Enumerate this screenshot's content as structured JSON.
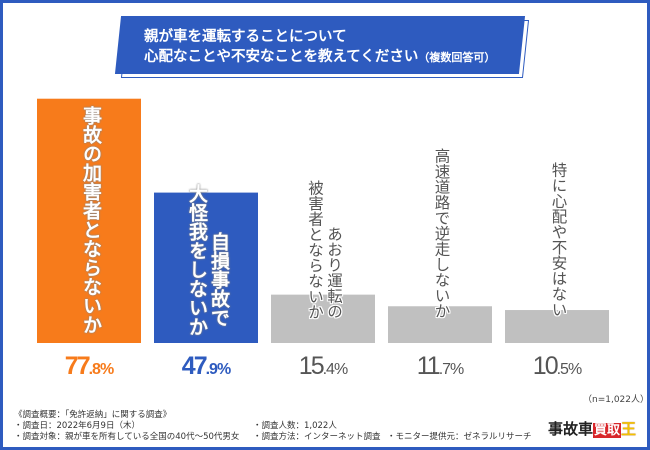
{
  "title": {
    "line1": "親が車を運転することについて",
    "line2": "心配なことや不安なことを教えてください",
    "line2_suffix": "（複数回答可）"
  },
  "chart_data": {
    "type": "bar",
    "title": "親が車を運転することについて心配なことや不安なことを教えてください（複数回答可）",
    "xlabel": "",
    "ylabel": "",
    "ylim": [
      0,
      100
    ],
    "grid": false,
    "categories": [
      "事故の加害者とならないか",
      "自損事故で大怪我をしないか",
      "あおり運転の被害者とならないか",
      "高速道路で逆走しないか",
      "特に心配や不安はない"
    ],
    "category_lines": [
      [
        "事故の加害者とならないか"
      ],
      [
        "自損事故で",
        "大怪我をしないか"
      ],
      [
        "あおり運転の",
        "被害者とならないか"
      ],
      [
        "高速道路で逆走しないか"
      ],
      [
        "特に心配や不安はない"
      ]
    ],
    "values": [
      77.8,
      47.9,
      15.4,
      11.7,
      10.5
    ],
    "value_labels": [
      {
        "int": "77",
        "dec": ".8%"
      },
      {
        "int": "47",
        "dec": ".9%"
      },
      {
        "int": "15",
        "dec": ".4%"
      },
      {
        "int": "11",
        "dec": ".7%"
      },
      {
        "int": "10",
        "dec": ".5%"
      }
    ],
    "colors": [
      "#f77b1b",
      "#2e5bbf",
      "#c0c0c0",
      "#c0c0c0",
      "#c0c0c0"
    ],
    "label_colors": [
      "#f77b1b",
      "#2e5bbf",
      "#555555",
      "#555555",
      "#555555"
    ],
    "sample_note": "（n=1,022人）"
  },
  "footer": {
    "heading": "《調査概要：「免許返納」に関する調査》",
    "date": "・調査日：2022年6月9日（木）",
    "target": "・調査対象：親が車を所有している全国の40代～50代男女",
    "count": "・調査人数：1,022人",
    "method": "・調査方法：インターネット調査",
    "provider": "・モニター提供元：ゼネラルリサーチ"
  },
  "logo": {
    "part1": "事故車",
    "part2": "買取",
    "part3": "王"
  },
  "colors": {
    "frame": "#2e5bbf",
    "accent_orange": "#f77b1b",
    "accent_blue": "#2e5bbf",
    "gray_bar": "#c0c0c0"
  }
}
